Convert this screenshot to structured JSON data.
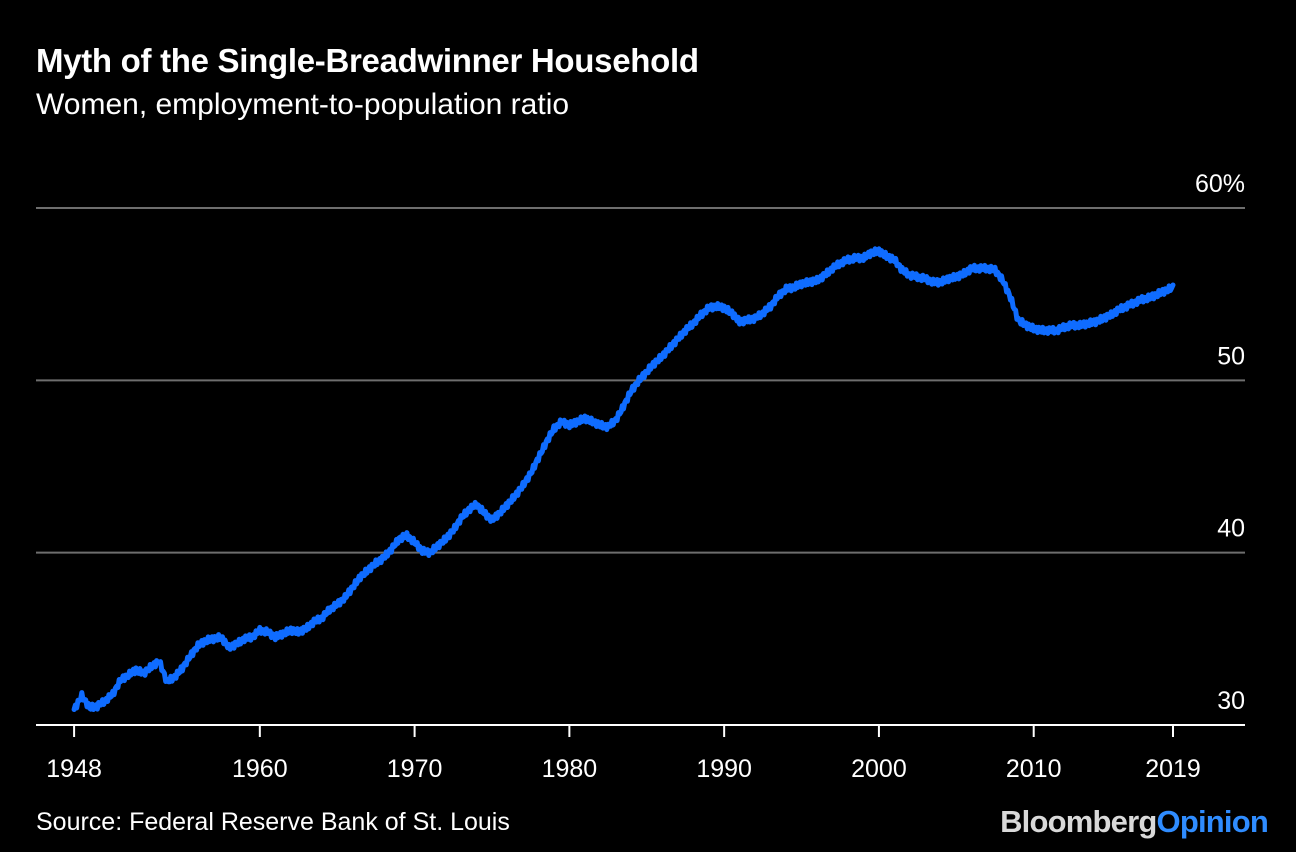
{
  "title": "Myth of the Single-Breadwinner Household",
  "subtitle": "Women, employment-to-population ratio",
  "source": "Source: Federal Reserve Bank of St. Louis",
  "brand": {
    "part1": "Bloomberg",
    "part2": "Opinion"
  },
  "colors": {
    "background": "#000000",
    "line": "#0f6cff",
    "grid": "#6e6e6e",
    "text": "#ffffff"
  },
  "chart_data": {
    "type": "line",
    "title": "Myth of the Single-Breadwinner Household",
    "subtitle": "Women, employment-to-population ratio",
    "xlabel": "",
    "ylabel": "",
    "xlim": [
      1947.8,
      2019.0
    ],
    "ylim": [
      30,
      60
    ],
    "y_ticks": [
      30,
      40,
      50,
      60
    ],
    "y_tick_labels": [
      "30",
      "40",
      "50",
      "60%"
    ],
    "x_ticks": [
      1948,
      1960,
      1970,
      1980,
      1990,
      2000,
      2010,
      2019
    ],
    "x_tick_labels": [
      "1948",
      "1960",
      "1970",
      "1980",
      "1990",
      "2000",
      "2010",
      "2019"
    ],
    "grid": "horizontal",
    "legend": "none",
    "series": [
      {
        "x": [
          1948.0,
          1948.5,
          1949.0,
          1949.5,
          1950.0,
          1950.5,
          1951.0,
          1951.5,
          1952.0,
          1952.5,
          1953.0,
          1953.5,
          1954.0,
          1954.5,
          1955.0,
          1955.5,
          1956.0,
          1956.5,
          1957.0,
          1957.5,
          1958.0,
          1958.5,
          1959.0,
          1959.5,
          1960.0,
          1960.5,
          1961.0,
          1961.5,
          1962.0,
          1962.5,
          1963.0,
          1963.5,
          1964.0,
          1964.5,
          1965.0,
          1965.5,
          1966.0,
          1966.5,
          1967.0,
          1967.5,
          1968.0,
          1968.5,
          1969.0,
          1969.5,
          1970.0,
          1970.5,
          1971.0,
          1971.5,
          1972.0,
          1972.5,
          1973.0,
          1973.5,
          1974.0,
          1974.5,
          1975.0,
          1975.5,
          1976.0,
          1976.5,
          1977.0,
          1977.5,
          1978.0,
          1978.5,
          1979.0,
          1979.5,
          1980.0,
          1980.5,
          1981.0,
          1981.5,
          1982.0,
          1982.5,
          1983.0,
          1983.5,
          1984.0,
          1984.5,
          1985.0,
          1985.5,
          1986.0,
          1986.5,
          1987.0,
          1987.5,
          1988.0,
          1988.5,
          1989.0,
          1989.5,
          1990.0,
          1990.5,
          1991.0,
          1991.5,
          1992.0,
          1992.5,
          1993.0,
          1993.5,
          1994.0,
          1994.5,
          1995.0,
          1995.5,
          1996.0,
          1996.5,
          1997.0,
          1997.5,
          1998.0,
          1998.5,
          1999.0,
          1999.5,
          2000.0,
          2000.5,
          2001.0,
          2001.5,
          2002.0,
          2002.5,
          2003.0,
          2003.5,
          2004.0,
          2004.5,
          2005.0,
          2005.5,
          2006.0,
          2006.5,
          2007.0,
          2007.5,
          2008.0,
          2008.5,
          2009.0,
          2009.5,
          2010.0,
          2010.5,
          2011.0,
          2011.5,
          2012.0,
          2012.5,
          2013.0,
          2013.5,
          2014.0,
          2014.5,
          2015.0,
          2015.5,
          2016.0,
          2016.5,
          2017.0,
          2017.5,
          2018.0,
          2018.5,
          2019.0
        ],
        "values": [
          30.9,
          31.7,
          31.0,
          31.1,
          31.4,
          31.8,
          32.6,
          32.9,
          33.2,
          33.0,
          33.4,
          33.7,
          32.5,
          32.8,
          33.3,
          34.0,
          34.6,
          34.9,
          35.0,
          35.1,
          34.5,
          34.7,
          35.0,
          35.1,
          35.5,
          35.4,
          35.1,
          35.3,
          35.5,
          35.4,
          35.6,
          36.0,
          36.2,
          36.7,
          37.0,
          37.4,
          38.0,
          38.6,
          39.0,
          39.4,
          39.7,
          40.2,
          40.8,
          41.0,
          40.6,
          40.1,
          40.0,
          40.4,
          40.8,
          41.3,
          42.0,
          42.5,
          42.8,
          42.3,
          41.9,
          42.3,
          42.8,
          43.3,
          43.9,
          44.6,
          45.5,
          46.4,
          47.2,
          47.6,
          47.4,
          47.6,
          47.8,
          47.6,
          47.4,
          47.3,
          47.7,
          48.5,
          49.4,
          50.0,
          50.5,
          51.0,
          51.4,
          51.9,
          52.4,
          52.9,
          53.3,
          53.8,
          54.2,
          54.3,
          54.2,
          53.9,
          53.4,
          53.5,
          53.6,
          53.9,
          54.3,
          54.9,
          55.3,
          55.4,
          55.6,
          55.7,
          55.8,
          56.1,
          56.5,
          56.8,
          57.0,
          57.1,
          57.1,
          57.4,
          57.5,
          57.2,
          57.0,
          56.4,
          56.1,
          56.0,
          55.9,
          55.7,
          55.7,
          55.9,
          56.0,
          56.2,
          56.5,
          56.5,
          56.5,
          56.4,
          55.8,
          54.8,
          53.5,
          53.2,
          53.0,
          52.9,
          52.9,
          52.9,
          53.1,
          53.2,
          53.2,
          53.3,
          53.4,
          53.6,
          53.8,
          54.1,
          54.3,
          54.5,
          54.7,
          54.8,
          55.0,
          55.2,
          55.4
        ]
      }
    ]
  }
}
